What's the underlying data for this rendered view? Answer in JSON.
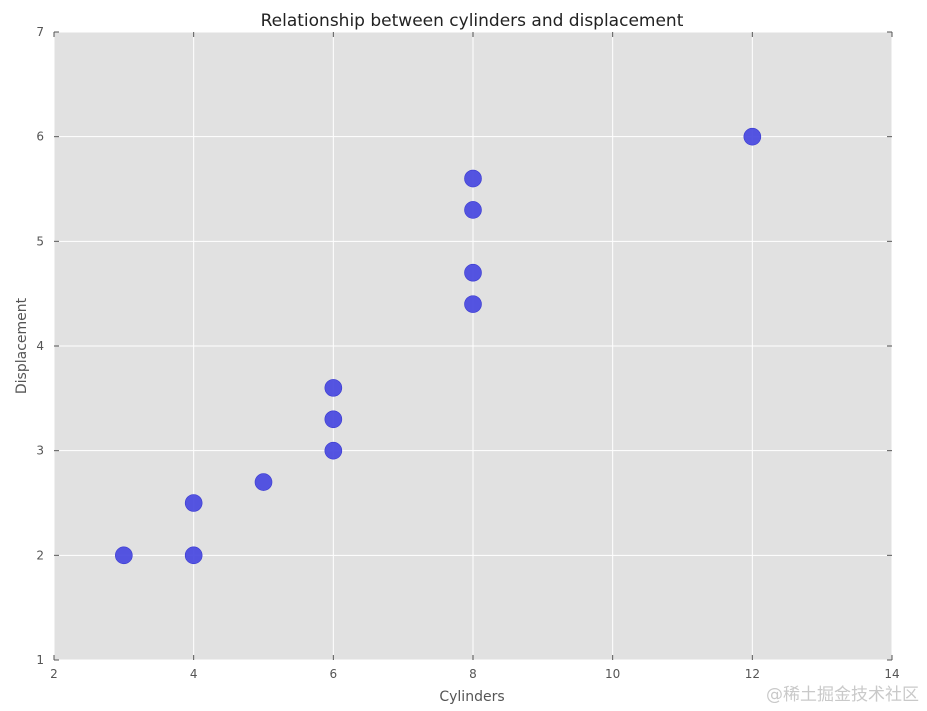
{
  "chart_data": {
    "type": "scatter",
    "title": "Relationship between cylinders and displacement",
    "xlabel": "Cylinders",
    "ylabel": "Displacement",
    "xlim": [
      2,
      14
    ],
    "ylim": [
      1,
      7
    ],
    "xticks": [
      2,
      4,
      6,
      8,
      10,
      12,
      14
    ],
    "yticks": [
      1,
      2,
      3,
      4,
      5,
      6,
      7
    ],
    "grid": true,
    "series": [
      {
        "color": "#4747e0",
        "points": [
          {
            "x": 3,
            "y": 2.0
          },
          {
            "x": 4,
            "y": 2.0
          },
          {
            "x": 4,
            "y": 2.5
          },
          {
            "x": 5,
            "y": 2.7
          },
          {
            "x": 6,
            "y": 3.0
          },
          {
            "x": 6,
            "y": 3.3
          },
          {
            "x": 6,
            "y": 3.6
          },
          {
            "x": 8,
            "y": 4.4
          },
          {
            "x": 8,
            "y": 4.7
          },
          {
            "x": 8,
            "y": 5.3
          },
          {
            "x": 8,
            "y": 5.6
          },
          {
            "x": 12,
            "y": 6.0
          }
        ]
      }
    ],
    "plot_background": "#e1e1e1"
  },
  "watermark": "@稀土掘金技术社区"
}
